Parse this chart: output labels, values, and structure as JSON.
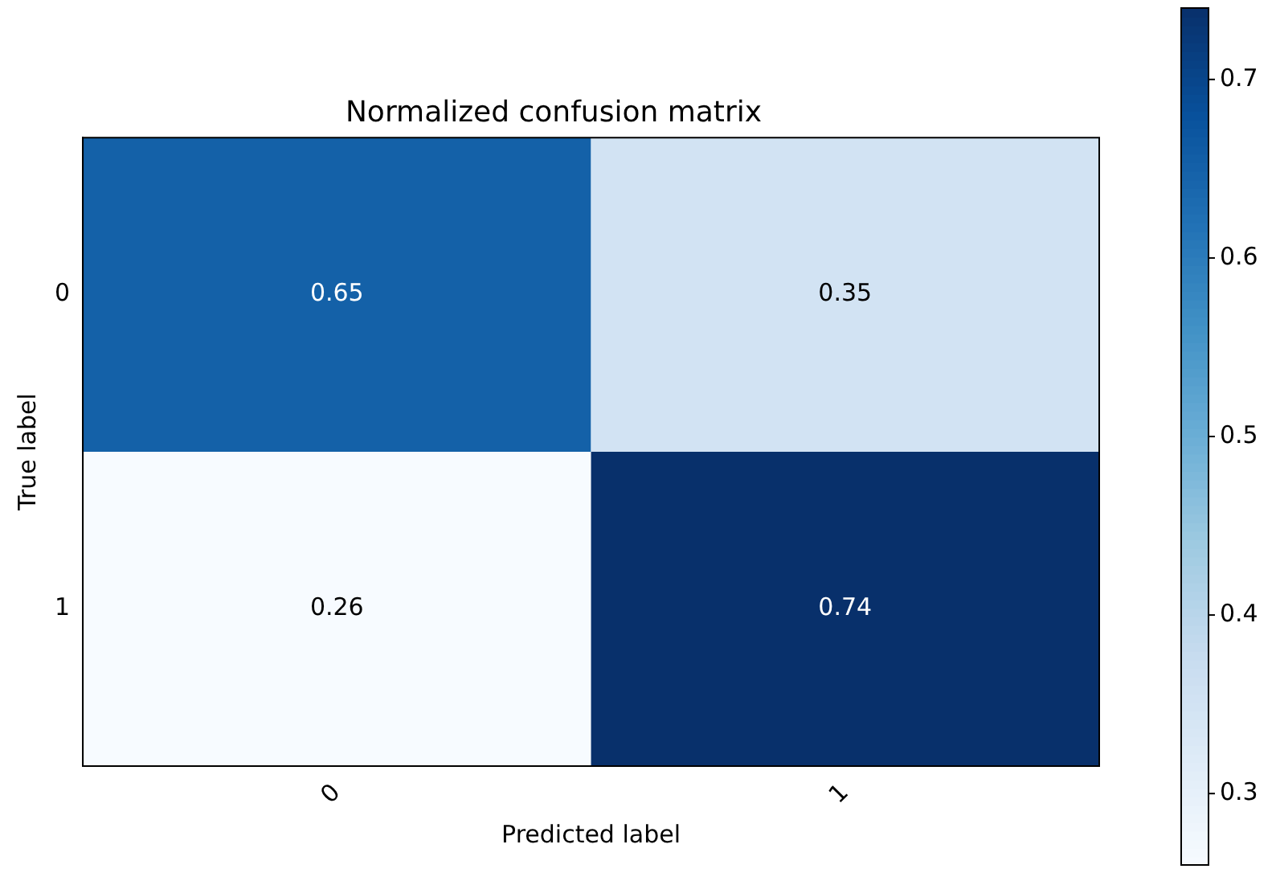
{
  "chart_data": {
    "type": "heatmap",
    "title": "Normalized confusion matrix",
    "xlabel": "Predicted label",
    "ylabel": "True label",
    "categories": [
      "0",
      "1"
    ],
    "y_categories": [
      "0",
      "1"
    ],
    "cells": [
      [
        0.65,
        0.35
      ],
      [
        0.26,
        0.74
      ]
    ],
    "clim": [
      0.26,
      0.74
    ],
    "cticks": [
      0.3,
      0.4,
      0.5,
      0.6,
      0.7
    ],
    "data_labels": true
  }
}
